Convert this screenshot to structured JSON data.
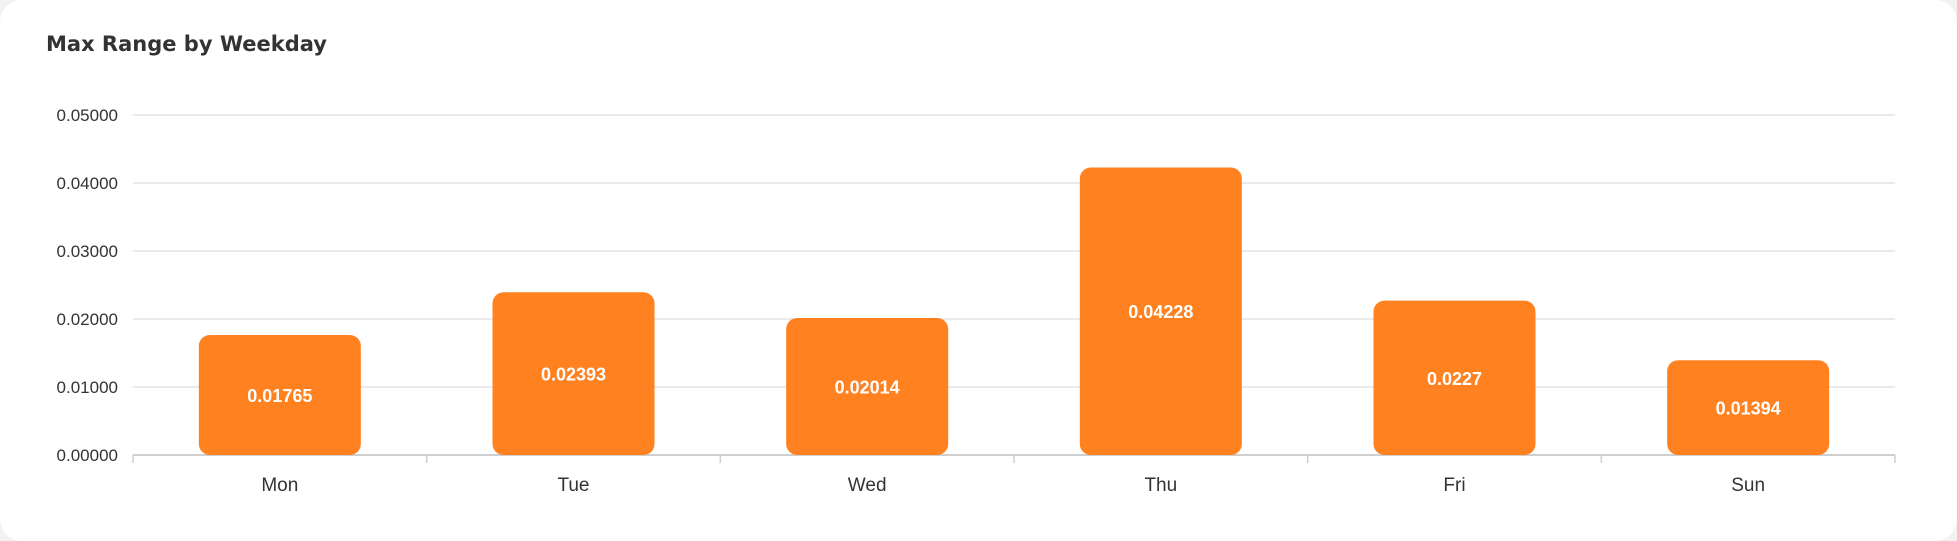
{
  "chart_data": {
    "type": "bar",
    "title": "Max Range by Weekday",
    "categories": [
      "Mon",
      "Tue",
      "Wed",
      "Thu",
      "Fri",
      "Sun"
    ],
    "values": [
      0.01765,
      0.02393,
      0.02014,
      0.04228,
      0.0227,
      0.01394
    ],
    "data_labels": [
      "0.01765",
      "0.02393",
      "0.02014",
      "0.04228",
      "0.0227",
      "0.01394"
    ],
    "ylim": [
      0,
      0.05
    ],
    "y_ticks": [
      0,
      0.01,
      0.02,
      0.03,
      0.04,
      0.05
    ],
    "y_tick_labels": [
      "0.00000",
      "0.01000",
      "0.02000",
      "0.03000",
      "0.04000",
      "0.05000"
    ],
    "xlabel": "",
    "ylabel": "",
    "grid": true,
    "bar_color": "#ff7a14"
  }
}
